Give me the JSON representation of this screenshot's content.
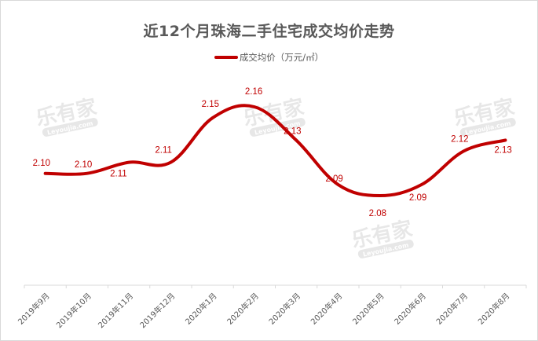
{
  "chart_data": {
    "type": "line",
    "title": "近12个月珠海二手住宅成交均价走势",
    "xlabel": "",
    "ylabel": "",
    "legend": {
      "position": "top",
      "entries": [
        "成交均价（万元/㎡）"
      ]
    },
    "grid": false,
    "categories": [
      "2019年9月",
      "2019年10月",
      "2019年11月",
      "2019年12月",
      "2020年1月",
      "2020年2月",
      "2020年3月",
      "2020年4月",
      "2020年5月",
      "2020年6月",
      "2020年7月",
      "2020年8月"
    ],
    "series": [
      {
        "name": "成交均价（万元/㎡）",
        "color": "#c00000",
        "smooth": true,
        "values": [
          2.1,
          2.1,
          2.11,
          2.11,
          2.15,
          2.16,
          2.13,
          2.09,
          2.08,
          2.09,
          2.12,
          2.13
        ]
      }
    ],
    "data_labels": [
      "2.10",
      "2.10",
      "2.11",
      "2.11",
      "2.15",
      "2.16",
      "2.13",
      "2.09",
      "2.08",
      "2.09",
      "2.12",
      "2.13"
    ]
  },
  "title": "近12个月珠海二手住宅成交均价走势",
  "legend_label": "成交均价（万元/㎡）",
  "watermark": {
    "text": "乐有家",
    "sub": "Leyoujia.com"
  },
  "colors": {
    "line": "#c00000",
    "axis": "#d9d9d9",
    "text": "#595959"
  }
}
